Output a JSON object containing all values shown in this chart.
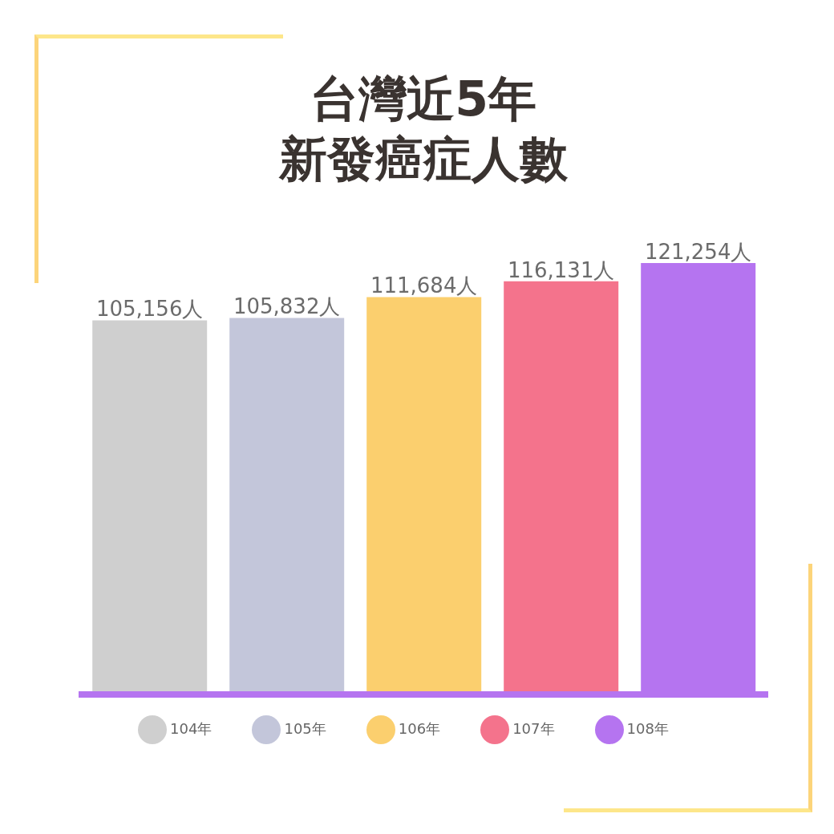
{
  "chart_data": {
    "type": "bar",
    "title": "台灣近5年新發癌症人數",
    "categories": [
      null
    ],
    "series": [
      {
        "name": "104年",
        "color": "#cfcfcf",
        "values": [
          105156
        ],
        "value_labels": [
          "105,156人"
        ]
      },
      {
        "name": "105年",
        "color": "#c3c6da",
        "values": [
          105832
        ],
        "value_labels": [
          "105,832人"
        ]
      },
      {
        "name": "106年",
        "color": "#fbcf6e",
        "values": [
          111684
        ],
        "value_labels": [
          "111,684人"
        ]
      },
      {
        "name": "107年",
        "color": "#f4738c",
        "values": [
          116131
        ],
        "value_labels": [
          "116,131人"
        ]
      },
      {
        "name": "108年",
        "color": "#b574f0",
        "values": [
          121254
        ],
        "value_labels": [
          "121,254人"
        ]
      }
    ],
    "tick_labels": false,
    "legend": "bottom"
  }
}
